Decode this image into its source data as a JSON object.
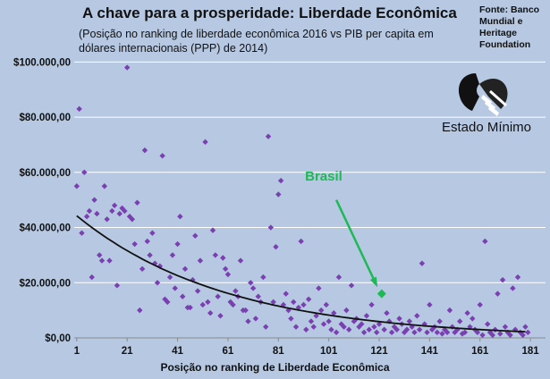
{
  "title": "A chave para a prosperidade: Liberdade Econômica",
  "subtitle": "(Posição no ranking de liberdade econômica 2016  vs PIB per capita em dólares internacionais (PPP) de 2014)",
  "source": "Fonte: Banco Mundial e Heritage Foundation",
  "logo": {
    "text": "Estado Mínimo",
    "icon": "handshake-icon"
  },
  "colors": {
    "background": "#b7c9e2",
    "points": "#7a3fb0",
    "trend": "#111111",
    "highlight": "#1db954",
    "grid": "#ffffff"
  },
  "chart_data": {
    "type": "scatter",
    "xlabel": "Posição no ranking de Liberdade Econômica",
    "ylabel": "",
    "xlim": [
      0,
      187
    ],
    "ylim": [
      0,
      104000
    ],
    "xticks": [
      1,
      21,
      41,
      61,
      81,
      101,
      121,
      141,
      161,
      181
    ],
    "yticks": [
      0,
      20000,
      40000,
      60000,
      80000,
      100000
    ],
    "ytick_labels": [
      "$0,00",
      "$20.000,00",
      "$40.000,00",
      "$60.000,00",
      "$80.000,00",
      "$100.000,00"
    ],
    "grid": "horizontal",
    "annotation": {
      "text": "Brasil",
      "point": [
        122,
        16000
      ]
    },
    "trendline": {
      "type": "exponential",
      "a": 45000,
      "b": -0.0168
    },
    "points": [
      [
        1,
        55000
      ],
      [
        2,
        83000
      ],
      [
        3,
        38000
      ],
      [
        4,
        60000
      ],
      [
        5,
        44000
      ],
      [
        6,
        46000
      ],
      [
        7,
        22000
      ],
      [
        8,
        50000
      ],
      [
        9,
        45000
      ],
      [
        10,
        30000
      ],
      [
        11,
        28000
      ],
      [
        12,
        55000
      ],
      [
        13,
        43000
      ],
      [
        14,
        28000
      ],
      [
        15,
        46000
      ],
      [
        16,
        48000
      ],
      [
        17,
        19000
      ],
      [
        18,
        45000
      ],
      [
        19,
        47000
      ],
      [
        20,
        46000
      ],
      [
        21,
        98000
      ],
      [
        22,
        44000
      ],
      [
        23,
        43000
      ],
      [
        24,
        34000
      ],
      [
        25,
        49000
      ],
      [
        26,
        10000
      ],
      [
        27,
        25000
      ],
      [
        28,
        68000
      ],
      [
        29,
        35000
      ],
      [
        30,
        30000
      ],
      [
        31,
        38000
      ],
      [
        32,
        27000
      ],
      [
        33,
        20000
      ],
      [
        34,
        26000
      ],
      [
        35,
        66000
      ],
      [
        36,
        14000
      ],
      [
        37,
        13000
      ],
      [
        38,
        22000
      ],
      [
        39,
        30000
      ],
      [
        40,
        18000
      ],
      [
        41,
        34000
      ],
      [
        42,
        44000
      ],
      [
        43,
        15000
      ],
      [
        44,
        25000
      ],
      [
        45,
        11000
      ],
      [
        46,
        11000
      ],
      [
        47,
        21000
      ],
      [
        48,
        37000
      ],
      [
        49,
        17000
      ],
      [
        50,
        28000
      ],
      [
        51,
        12000
      ],
      [
        52,
        71000
      ],
      [
        53,
        13000
      ],
      [
        54,
        9000
      ],
      [
        55,
        39000
      ],
      [
        56,
        30000
      ],
      [
        57,
        15000
      ],
      [
        58,
        8000
      ],
      [
        59,
        29000
      ],
      [
        60,
        25000
      ],
      [
        61,
        23000
      ],
      [
        62,
        13000
      ],
      [
        63,
        12000
      ],
      [
        64,
        17000
      ],
      [
        65,
        15000
      ],
      [
        66,
        28000
      ],
      [
        67,
        10000
      ],
      [
        68,
        10000
      ],
      [
        69,
        6000
      ],
      [
        70,
        20000
      ],
      [
        71,
        18000
      ],
      [
        72,
        7000
      ],
      [
        73,
        15000
      ],
      [
        74,
        13000
      ],
      [
        75,
        22000
      ],
      [
        76,
        4000
      ],
      [
        77,
        73000
      ],
      [
        78,
        40000
      ],
      [
        79,
        13000
      ],
      [
        80,
        33000
      ],
      [
        81,
        52000
      ],
      [
        82,
        57000
      ],
      [
        83,
        12000
      ],
      [
        84,
        16000
      ],
      [
        85,
        10000
      ],
      [
        86,
        7000
      ],
      [
        87,
        13000
      ],
      [
        88,
        4000
      ],
      [
        89,
        11000
      ],
      [
        90,
        35000
      ],
      [
        91,
        12000
      ],
      [
        92,
        3000
      ],
      [
        93,
        14000
      ],
      [
        94,
        6000
      ],
      [
        95,
        4000
      ],
      [
        96,
        8000
      ],
      [
        97,
        18000
      ],
      [
        98,
        10000
      ],
      [
        99,
        5000
      ],
      [
        100,
        12000
      ],
      [
        101,
        6000
      ],
      [
        102,
        3000
      ],
      [
        103,
        9000
      ],
      [
        104,
        2000
      ],
      [
        105,
        22000
      ],
      [
        106,
        5000
      ],
      [
        107,
        4000
      ],
      [
        108,
        10000
      ],
      [
        109,
        3000
      ],
      [
        110,
        19000
      ],
      [
        111,
        6000
      ],
      [
        112,
        7000
      ],
      [
        113,
        4000
      ],
      [
        114,
        5000
      ],
      [
        115,
        2000
      ],
      [
        116,
        8000
      ],
      [
        117,
        3000
      ],
      [
        118,
        12000
      ],
      [
        119,
        4000
      ],
      [
        120,
        2000
      ],
      [
        121,
        5000
      ],
      [
        123,
        3000
      ],
      [
        124,
        9000
      ],
      [
        125,
        6000
      ],
      [
        126,
        2000
      ],
      [
        127,
        4000
      ],
      [
        128,
        3000
      ],
      [
        129,
        7000
      ],
      [
        130,
        5000
      ],
      [
        131,
        2000
      ],
      [
        132,
        3000
      ],
      [
        133,
        6000
      ],
      [
        134,
        4000
      ],
      [
        135,
        2000
      ],
      [
        136,
        8000
      ],
      [
        137,
        3000
      ],
      [
        138,
        27000
      ],
      [
        139,
        5000
      ],
      [
        140,
        2000
      ],
      [
        141,
        12000
      ],
      [
        142,
        3000
      ],
      [
        143,
        4000
      ],
      [
        144,
        2000
      ],
      [
        145,
        6000
      ],
      [
        146,
        1500
      ],
      [
        147,
        3000
      ],
      [
        148,
        2000
      ],
      [
        149,
        10000
      ],
      [
        150,
        4000
      ],
      [
        151,
        2000
      ],
      [
        152,
        3000
      ],
      [
        153,
        6000
      ],
      [
        154,
        1500
      ],
      [
        155,
        2000
      ],
      [
        156,
        9000
      ],
      [
        157,
        4000
      ],
      [
        158,
        7000
      ],
      [
        159,
        3000
      ],
      [
        160,
        2000
      ],
      [
        161,
        12000
      ],
      [
        162,
        1000
      ],
      [
        163,
        35000
      ],
      [
        164,
        5000
      ],
      [
        165,
        2000
      ],
      [
        166,
        1000
      ],
      [
        167,
        3000
      ],
      [
        168,
        16000
      ],
      [
        169,
        1500
      ],
      [
        170,
        21000
      ],
      [
        171,
        4000
      ],
      [
        172,
        2000
      ],
      [
        173,
        1000
      ],
      [
        174,
        18000
      ],
      [
        175,
        3000
      ],
      [
        176,
        22000
      ],
      [
        177,
        2000
      ],
      [
        178,
        1000
      ],
      [
        179,
        4000
      ],
      [
        180,
        2000
      ]
    ]
  }
}
